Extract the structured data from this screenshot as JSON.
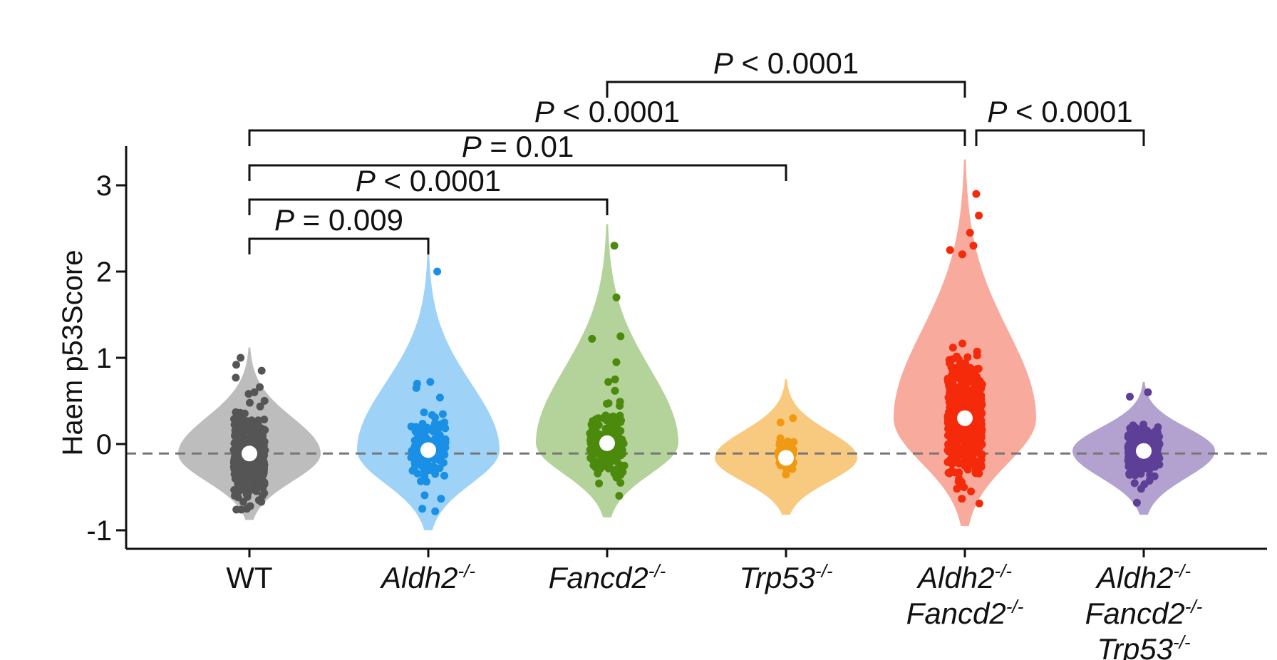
{
  "chart_data": {
    "type": "violin",
    "ylabel": "Haem p53Score",
    "ylim": [
      -1.2,
      3.4
    ],
    "yticks": [
      {
        "value": 3,
        "label": "3"
      },
      {
        "value": 2,
        "label": "2"
      },
      {
        "value": 1,
        "label": "1"
      },
      {
        "value": 0,
        "label": "0"
      },
      {
        "value": -1,
        "label": "-1"
      }
    ],
    "reference_line": -0.11,
    "groups": [
      {
        "name": "WT",
        "label_lines": [
          {
            "base": "WT",
            "sup": ""
          }
        ],
        "italic": false,
        "color": "#bdbdbd",
        "point_color": "#555555",
        "median": -0.11,
        "min": -0.88,
        "max": 1.12,
        "n_points": 420,
        "point_spread": 0.42,
        "jitter_width": 0.1,
        "outliers": [
          1.0,
          0.92,
          0.85,
          0.66,
          0.6,
          -0.72,
          -0.75
        ]
      },
      {
        "name": "Aldh2-/-",
        "label_lines": [
          {
            "base": "Aldh2",
            "sup": "-/-"
          }
        ],
        "italic": true,
        "color": "#9ed3f7",
        "point_color": "#1a8fe6",
        "median": -0.07,
        "min": -1.0,
        "max": 2.2,
        "n_points": 150,
        "point_spread": 0.36,
        "jitter_width": 0.11,
        "outliers": [
          2.0,
          0.72,
          0.7,
          0.65,
          -0.75,
          -0.78
        ]
      },
      {
        "name": "Fancd2-/-",
        "label_lines": [
          {
            "base": "Fancd2",
            "sup": "-/-"
          }
        ],
        "italic": true,
        "color": "#b3d39a",
        "point_color": "#4b8a0c",
        "median": 0.01,
        "min": -0.85,
        "max": 2.55,
        "n_points": 160,
        "point_spread": 0.35,
        "jitter_width": 0.11,
        "outliers": [
          2.3,
          1.7,
          1.25,
          1.22,
          0.95,
          0.75,
          0.72,
          -0.6
        ]
      },
      {
        "name": "Trp53-/-",
        "label_lines": [
          {
            "base": "Trp53",
            "sup": "-/-"
          }
        ],
        "italic": true,
        "color": "#f8ca7f",
        "point_color": "#f09a14",
        "median": -0.16,
        "min": -0.82,
        "max": 0.75,
        "n_points": 60,
        "point_spread": 0.17,
        "jitter_width": 0.05,
        "outliers": [
          0.3,
          0.25,
          -0.35
        ]
      },
      {
        "name": "Aldh2-/- Fancd2-/-",
        "label_lines": [
          {
            "base": "Aldh2",
            "sup": "-/-"
          },
          {
            "base": "Fancd2",
            "sup": "-/-"
          }
        ],
        "italic": true,
        "color": "#f8aa9d",
        "point_color": "#f52a0a",
        "median": 0.3,
        "min": -0.95,
        "max": 3.3,
        "n_points": 520,
        "point_spread": 0.6,
        "jitter_width": 0.11,
        "outliers": [
          2.9,
          2.65,
          2.45,
          2.3,
          2.25,
          2.2,
          -0.55
        ]
      },
      {
        "name": "Aldh2-/- Fancd2-/- Trp53-/-",
        "label_lines": [
          {
            "base": "Aldh2",
            "sup": "-/-"
          },
          {
            "base": "Fancd2",
            "sup": "-/-"
          },
          {
            "base": "Trp53",
            "sup": "-/-"
          }
        ],
        "italic": true,
        "color": "#b3a2cf",
        "point_color": "#5e3f97",
        "median": -0.08,
        "min": -0.82,
        "max": 0.72,
        "n_points": 260,
        "point_spread": 0.24,
        "jitter_width": 0.1,
        "outliers": [
          0.6,
          0.55,
          -0.68
        ]
      }
    ],
    "comparisons": [
      {
        "from": 0,
        "to": 1,
        "label_italic": "P",
        "label_rest": " = 0.009"
      },
      {
        "from": 0,
        "to": 2,
        "label_italic": "P",
        "label_rest": " < 0.0001"
      },
      {
        "from": 0,
        "to": 3,
        "label_italic": "P",
        "label_rest": " = 0.01"
      },
      {
        "from": 0,
        "to": 4,
        "label_italic": "P",
        "label_rest": " < 0.0001"
      },
      {
        "from": 2,
        "to": 4,
        "label_italic": "P",
        "label_rest": " < 0.0001"
      },
      {
        "from": 4,
        "to": 5,
        "label_italic": "P",
        "label_rest": " < 0.0001"
      }
    ]
  }
}
